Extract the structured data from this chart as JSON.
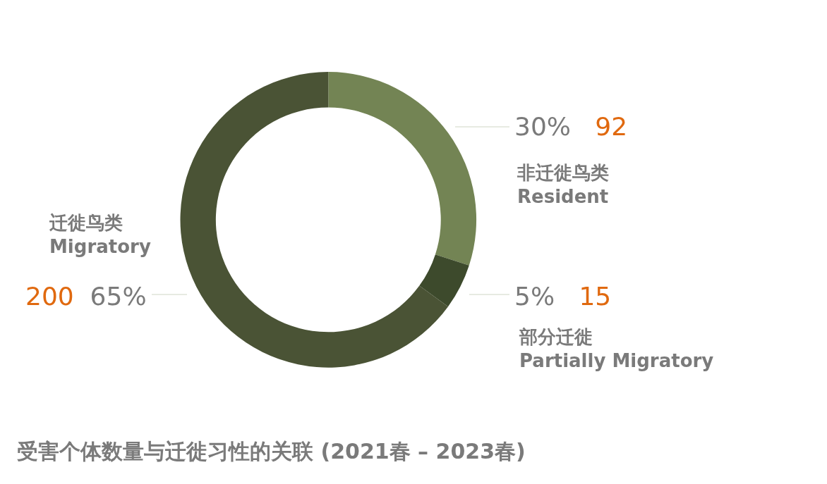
{
  "chart_data": {
    "type": "donut",
    "title": "受害个体数量与迁徙习性的关联 (2021春 – 2023春)",
    "categories": [
      "非迁徙鸟类\nResident",
      "部分迁徙\nPartially Migratory",
      "迁徙鸟类\nMigratory"
    ],
    "values": [
      30,
      5,
      65
    ],
    "colors": [
      "#738454",
      "#3d4a2c",
      "#4a5335"
    ],
    "value_labels": [
      "30%",
      "5%",
      "65%"
    ],
    "annotations": [
      "92",
      "15",
      "200"
    ],
    "legend": false
  }
}
